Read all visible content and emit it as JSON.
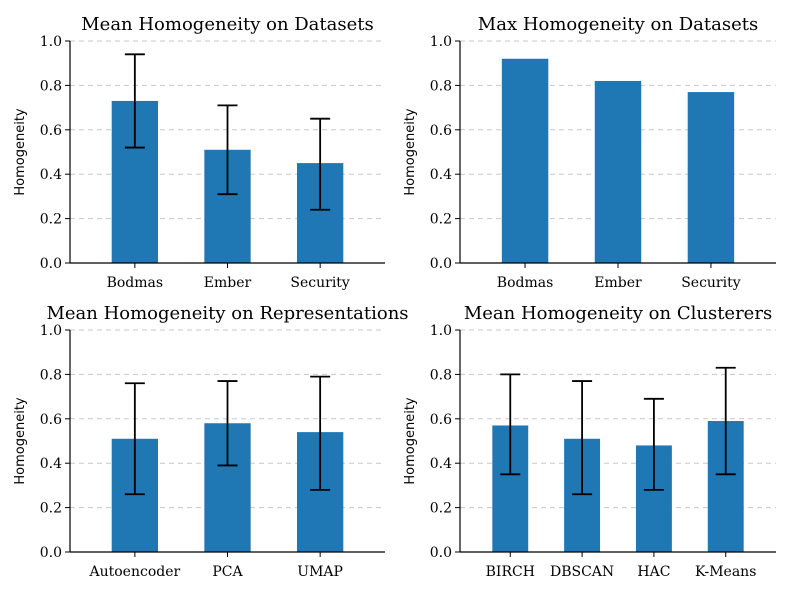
{
  "figure": {
    "bar_color": "#1f77b4",
    "grid_color": "#c8c8c8"
  },
  "chart_data": [
    {
      "type": "bar",
      "title": "Mean Homogeneity on Datasets",
      "xlabel": "",
      "ylabel": "Homogeneity",
      "ylim": [
        0,
        1.0
      ],
      "yticks": [
        "0.0",
        "0.2",
        "0.4",
        "0.6",
        "0.8",
        "1.0"
      ],
      "grid": true,
      "categories": [
        "Bodmas",
        "Ember",
        "Security"
      ],
      "values": [
        0.73,
        0.51,
        0.45
      ],
      "error_low": [
        0.52,
        0.31,
        0.24
      ],
      "error_high": [
        0.94,
        0.71,
        0.65
      ]
    },
    {
      "type": "bar",
      "title": "Max Homogeneity on Datasets",
      "xlabel": "",
      "ylabel": "Homogeneity",
      "ylim": [
        0,
        1.0
      ],
      "yticks": [
        "0.0",
        "0.2",
        "0.4",
        "0.6",
        "0.8",
        "1.0"
      ],
      "grid": true,
      "categories": [
        "Bodmas",
        "Ember",
        "Security"
      ],
      "values": [
        0.92,
        0.82,
        0.77
      ],
      "error_low": null,
      "error_high": null
    },
    {
      "type": "bar",
      "title": "Mean Homogeneity on Representations",
      "xlabel": "",
      "ylabel": "Homogeneity",
      "ylim": [
        0,
        1.0
      ],
      "yticks": [
        "0.0",
        "0.2",
        "0.4",
        "0.6",
        "0.8",
        "1.0"
      ],
      "grid": true,
      "categories": [
        "Autoencoder",
        "PCA",
        "UMAP"
      ],
      "values": [
        0.51,
        0.58,
        0.54
      ],
      "error_low": [
        0.26,
        0.39,
        0.28
      ],
      "error_high": [
        0.76,
        0.77,
        0.79
      ]
    },
    {
      "type": "bar",
      "title": "Mean Homogeneity on Clusterers",
      "xlabel": "",
      "ylabel": "Homogeneity",
      "ylim": [
        0,
        1.0
      ],
      "yticks": [
        "0.0",
        "0.2",
        "0.4",
        "0.6",
        "0.8",
        "1.0"
      ],
      "grid": true,
      "categories": [
        "BIRCH",
        "DBSCAN",
        "HAC",
        "K-Means"
      ],
      "values": [
        0.57,
        0.51,
        0.48,
        0.59
      ],
      "error_low": [
        0.35,
        0.26,
        0.28,
        0.35
      ],
      "error_high": [
        0.8,
        0.77,
        0.69,
        0.83
      ]
    }
  ]
}
